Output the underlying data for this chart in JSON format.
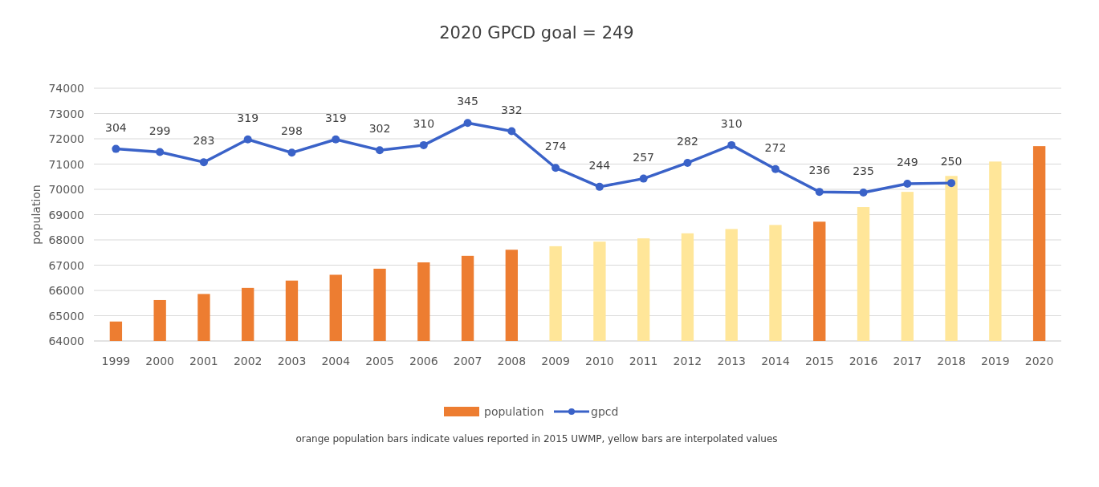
{
  "chart_data": {
    "type": "bar",
    "title": "2020 GPCD goal = 249",
    "ylabel": "population",
    "categories": [
      "1999",
      "2000",
      "2001",
      "2002",
      "2003",
      "2004",
      "2005",
      "2006",
      "2007",
      "2008",
      "2009",
      "2010",
      "2011",
      "2012",
      "2013",
      "2014",
      "2015",
      "2016",
      "2017",
      "2018",
      "2019",
      "2020"
    ],
    "series": [
      {
        "name": "population",
        "color": "#ed7d31",
        "colors": [
          "#ed7d31",
          "#ed7d31",
          "#ed7d31",
          "#ed7d31",
          "#ed7d31",
          "#ed7d31",
          "#ed7d31",
          "#ed7d31",
          "#ed7d31",
          "#ed7d31",
          "#ffe699",
          "#ffe699",
          "#ffe699",
          "#ffe699",
          "#ffe699",
          "#ffe699",
          "#ed7d31",
          "#ffe699",
          "#ffe699",
          "#ffe699",
          "#ffe699",
          "#ed7d31"
        ],
        "values": [
          64770,
          65620,
          65860,
          66100,
          66390,
          66620,
          66860,
          67110,
          67370,
          67610,
          67750,
          67930,
          68060,
          68260,
          68430,
          68590,
          68720,
          69300,
          69900,
          70530,
          71100,
          71710
        ]
      },
      {
        "name": "gpcd",
        "type": "line",
        "axis": "y2",
        "color": "#3a62c8",
        "values": [
          304,
          299,
          283,
          319,
          298,
          319,
          302,
          310,
          345,
          332,
          274,
          244,
          257,
          282,
          310,
          272,
          236,
          235,
          249,
          250,
          null,
          null
        ],
        "value_labels": [
          "304",
          "299",
          "283",
          "319",
          "298",
          "319",
          "302",
          "310",
          "345",
          "332",
          "274",
          "244",
          "257",
          "282",
          "310",
          "272",
          "236",
          "235",
          "249",
          "250",
          null,
          null
        ]
      }
    ],
    "ylim": [
      64000,
      74000
    ],
    "yticks": [
      64000,
      65000,
      66000,
      67000,
      68000,
      69000,
      70000,
      71000,
      72000,
      73000,
      74000
    ],
    "y2lim": [
      0,
      400
    ],
    "grid": "y",
    "legend": "bottom",
    "marker": "circle",
    "line_style": "solid",
    "annotations": [
      "orange population bars indicate values reported in 2015 UWMP, yellow bars are interpolated values"
    ]
  }
}
